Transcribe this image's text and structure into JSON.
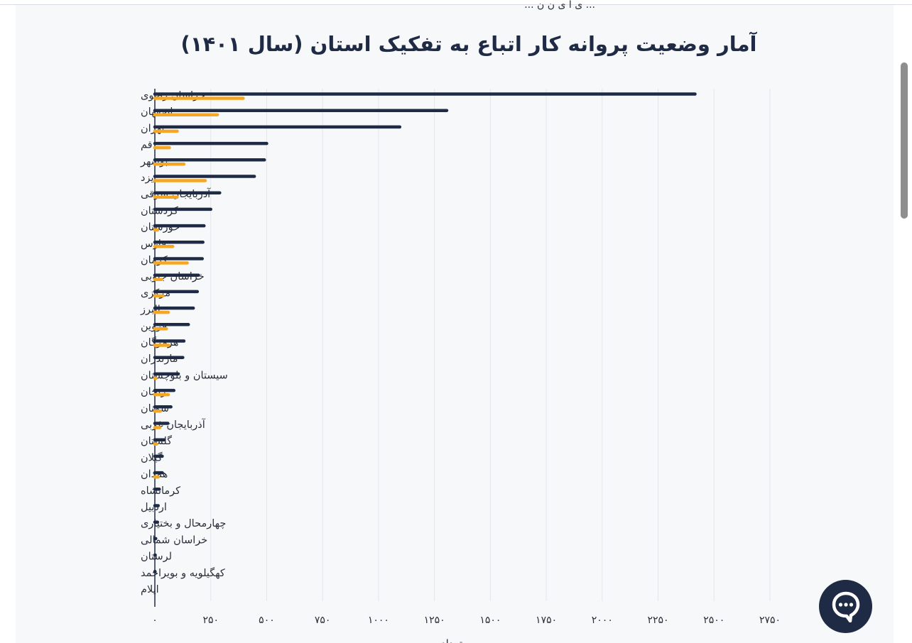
{
  "page": {
    "partial_header_text": "... ی ا ی ن ن ...",
    "chat_button_label": ""
  },
  "chart_data": {
    "type": "bar",
    "orientation": "horizontal",
    "title": "آمار وضعیت پروانه کار اتباع به تفکیک استان (سال ۱۴۰۱)",
    "xlabel": "تعداد",
    "xlim": [
      0,
      2750
    ],
    "xticks": [
      0,
      250,
      500,
      750,
      1000,
      1250,
      1500,
      1750,
      2000,
      2250,
      2500,
      2750
    ],
    "xtick_labels": [
      "۰",
      "۲۵۰",
      "۵۰۰",
      "۷۵۰",
      "۱۰۰۰",
      "۱۲۵۰",
      "۱۵۰۰",
      "۱۷۵۰",
      "۲۰۰۰",
      "۲۲۵۰",
      "۲۵۰۰",
      "۲۷۵۰"
    ],
    "grid": true,
    "categories": [
      "خراسان رضوی",
      "اصفهان",
      "تهران",
      "قم",
      "بوشهر",
      "یزد",
      "آذربایجان شرقی",
      "کردستان",
      "خوزستان",
      "فارس",
      "کرمان",
      "خراسان جنوبی",
      "مرکزی",
      "البرز",
      "قزوین",
      "هرمزگان",
      "مازندران",
      "سیستان و بلوچستان",
      "زنجان",
      "سمنان",
      "آذربایجان غربی",
      "گلستان",
      "گیلان",
      "همدان",
      "کرمانشاه",
      "اردبیل",
      "چهارمحال و بختیاری",
      "خراسان شمالی",
      "لرستان",
      "کهگیلویه و بویراحمد",
      "ایلام"
    ],
    "series": [
      {
        "color": "#1f2a44",
        "values": [
          2415,
          1305,
          1095,
          500,
          490,
          445,
          290,
          250,
          220,
          215,
          212,
          195,
          190,
          172,
          150,
          130,
          125,
          105,
          85,
          72,
          58,
          42,
          33,
          33,
          20,
          15,
          12,
          4,
          2,
          1,
          0
        ]
      },
      {
        "color": "#f5a623",
        "values": [
          395,
          280,
          100,
          65,
          130,
          225,
          100,
          0,
          12,
          80,
          145,
          30,
          35,
          60,
          52,
          62,
          0,
          5,
          60,
          25,
          22,
          8,
          0,
          15,
          0,
          0,
          0,
          0,
          0,
          0,
          0
        ]
      }
    ]
  }
}
